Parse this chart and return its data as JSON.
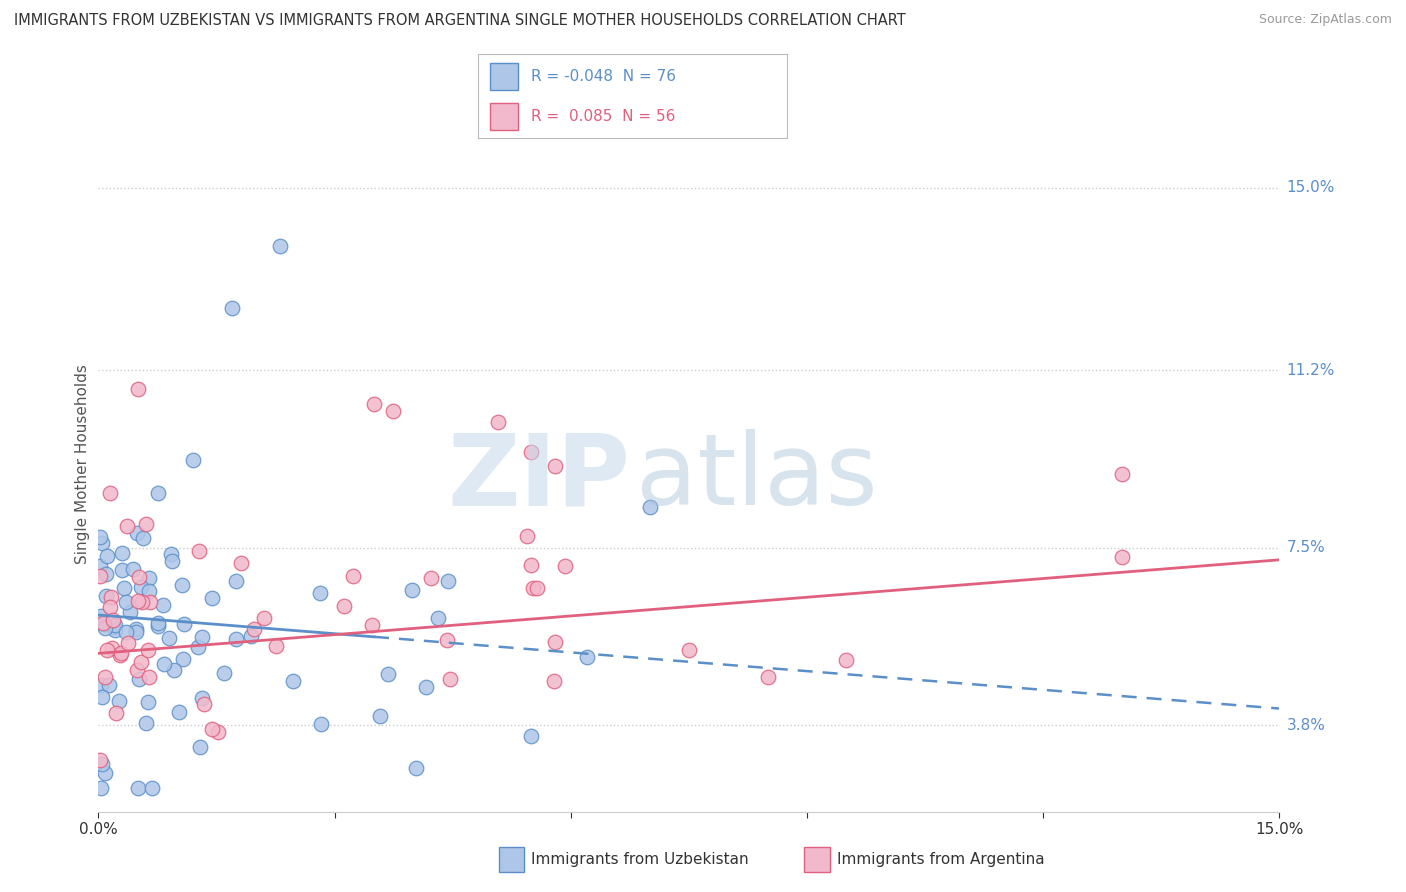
{
  "title": "IMMIGRANTS FROM UZBEKISTAN VS IMMIGRANTS FROM ARGENTINA SINGLE MOTHER HOUSEHOLDS CORRELATION CHART",
  "source": "Source: ZipAtlas.com",
  "ylabel": "Single Mother Households",
  "xlim": [
    0.0,
    15.0
  ],
  "ylim": [
    2.0,
    16.5
  ],
  "right_ytick_values": [
    3.8,
    7.5,
    11.2,
    15.0
  ],
  "right_ytick_labels": [
    "3.8%",
    "7.5%",
    "11.2%",
    "15.0%"
  ],
  "series1_color": "#aec6e8",
  "series1_edge_color": "#5b8fc9",
  "series1_label": "Immigrants from Uzbekistan",
  "series1_R": "-0.048",
  "series1_N": "76",
  "series2_color": "#f2b8cb",
  "series2_edge_color": "#e0607e",
  "series2_label": "Immigrants from Argentina",
  "series2_R": "0.085",
  "series2_N": "56",
  "background_color": "#ffffff",
  "watermark_zip_color": "#c5d8ea",
  "watermark_atlas_color": "#a8c2d8",
  "legend_border_color": "#bbbbbb",
  "grid_color": "#cccccc",
  "title_color": "#333333",
  "source_color": "#999999",
  "ylabel_color": "#555555",
  "ytick_label_color": "#5b8fc9",
  "xtick_label_color": "#333333"
}
